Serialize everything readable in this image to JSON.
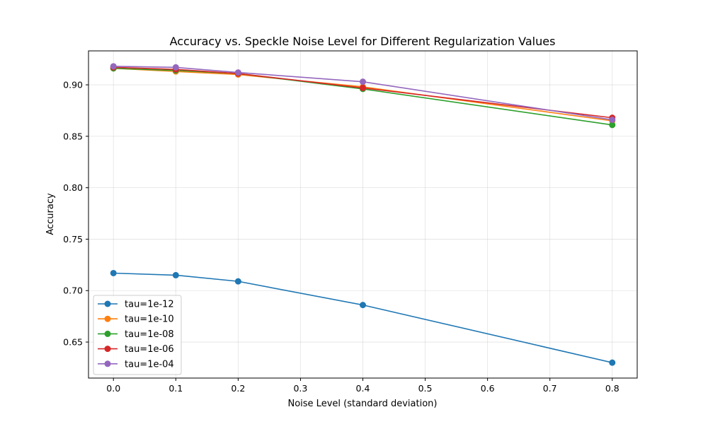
{
  "chart_data": {
    "type": "line",
    "title": "Accuracy vs. Speckle Noise Level for Different Regularization Values",
    "xlabel": "Noise Level (standard deviation)",
    "ylabel": "Accuracy",
    "xlim": [
      -0.04,
      0.84
    ],
    "ylim": [
      0.615,
      0.933
    ],
    "xticks": [
      0.0,
      0.1,
      0.2,
      0.3,
      0.4,
      0.5,
      0.6,
      0.7,
      0.8
    ],
    "xtick_labels": [
      "0.0",
      "0.1",
      "0.2",
      "0.3",
      "0.4",
      "0.5",
      "0.6",
      "0.7",
      "0.8"
    ],
    "yticks": [
      0.65,
      0.7,
      0.75,
      0.8,
      0.85,
      0.9
    ],
    "ytick_labels": [
      "0.65",
      "0.70",
      "0.75",
      "0.80",
      "0.85",
      "0.90"
    ],
    "grid": true,
    "legend_position": "lower-left",
    "x": [
      0.0,
      0.1,
      0.2,
      0.4,
      0.8
    ],
    "series": [
      {
        "name": "tau=1e-12",
        "color": "#1f77b4",
        "values": [
          0.717,
          0.715,
          0.709,
          0.686,
          0.63
        ]
      },
      {
        "name": "tau=1e-10",
        "color": "#ff7f0e",
        "values": [
          0.916,
          0.913,
          0.91,
          0.898,
          0.865
        ]
      },
      {
        "name": "tau=1e-08",
        "color": "#2ca02c",
        "values": [
          0.916,
          0.914,
          0.911,
          0.896,
          0.861
        ]
      },
      {
        "name": "tau=1e-06",
        "color": "#d62728",
        "values": [
          0.917,
          0.915,
          0.911,
          0.897,
          0.868
        ]
      },
      {
        "name": "tau=1e-04",
        "color": "#9467bd",
        "values": [
          0.918,
          0.917,
          0.912,
          0.903,
          0.866
        ]
      }
    ]
  }
}
